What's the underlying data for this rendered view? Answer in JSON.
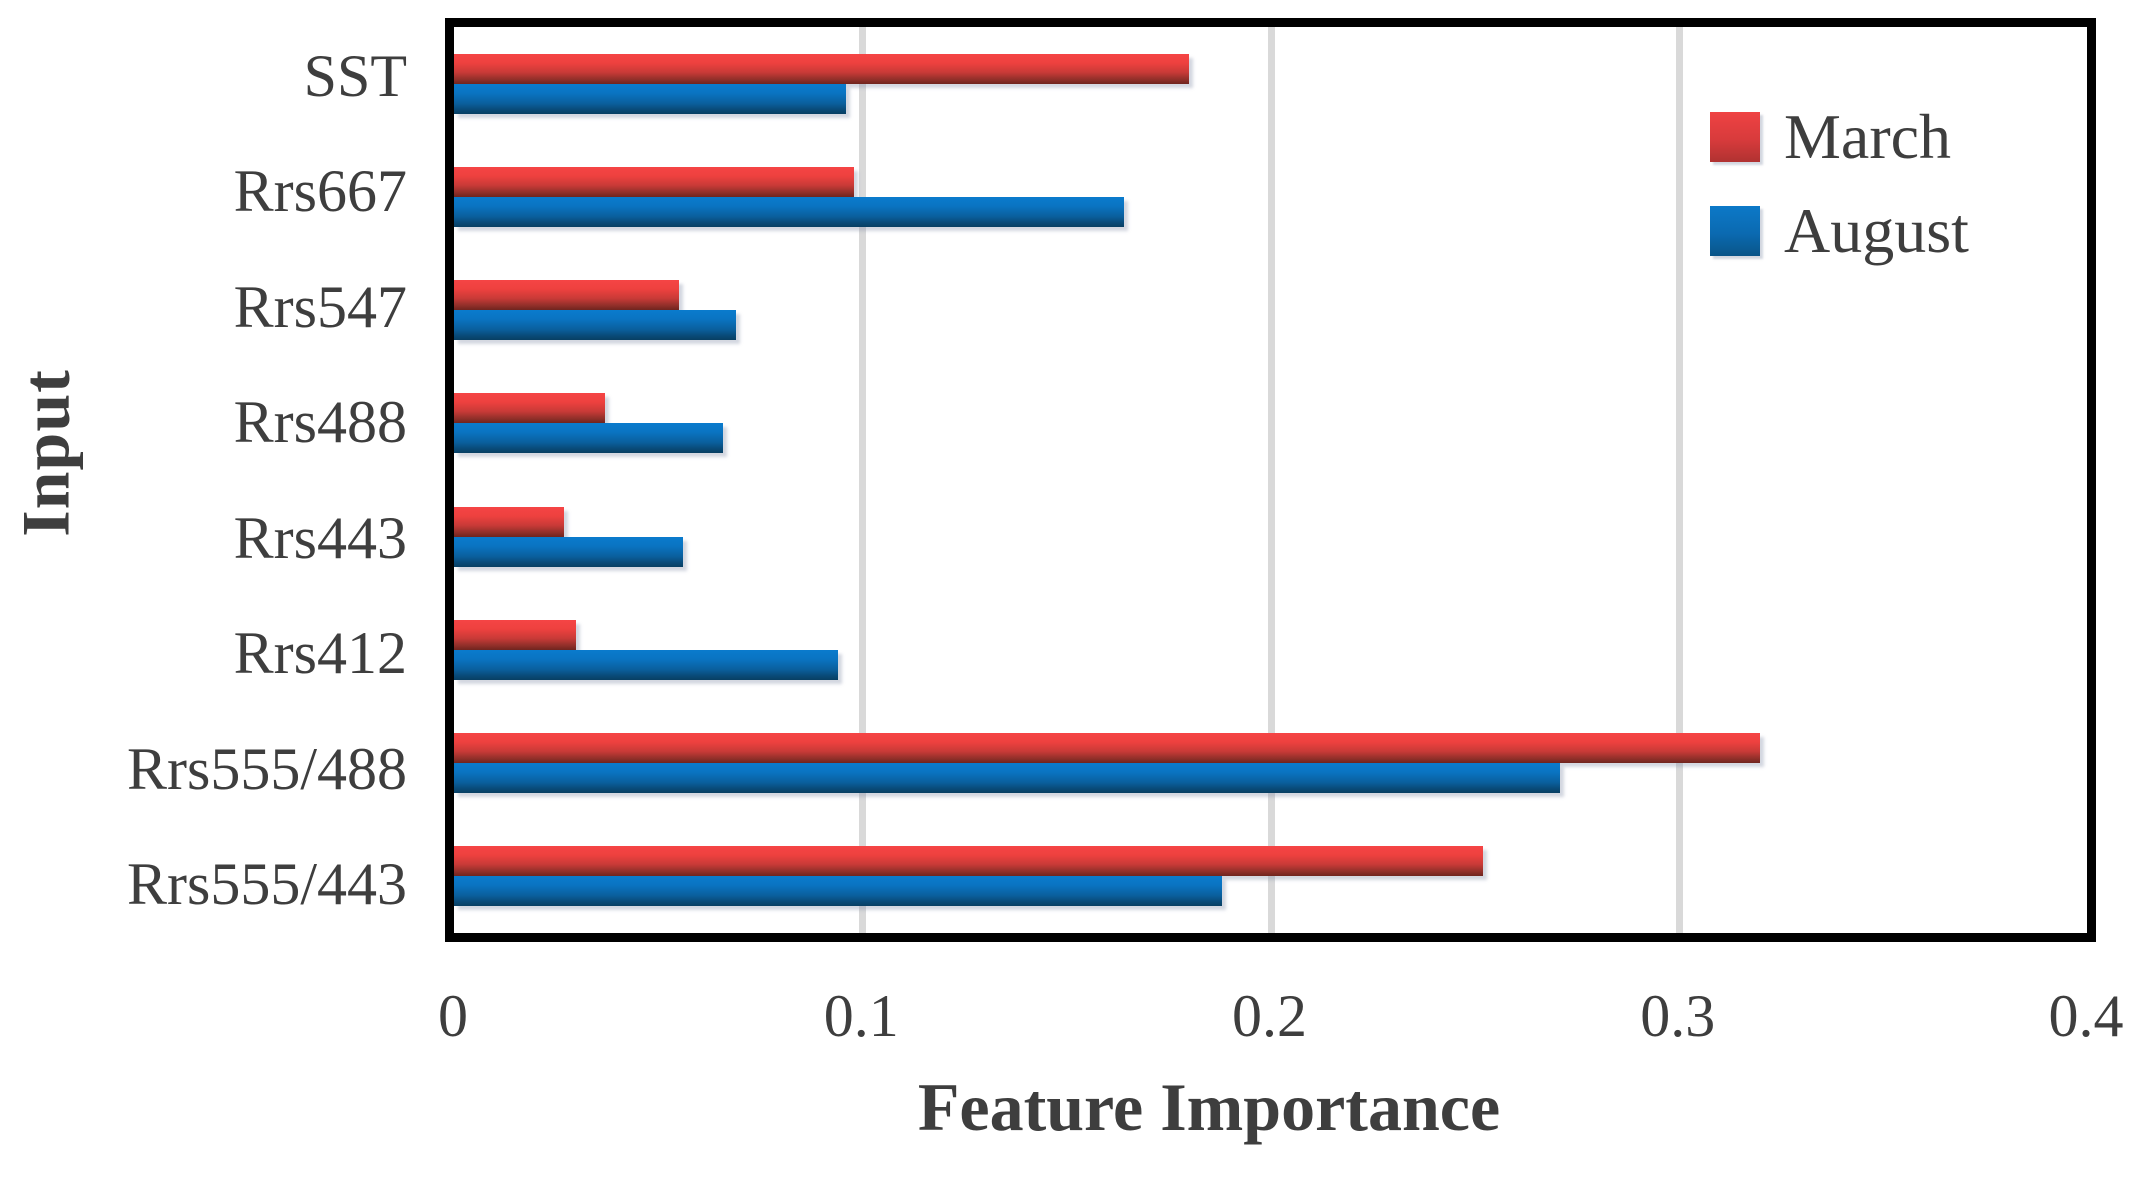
{
  "figure": {
    "y_axis_title": "Input",
    "x_axis_title": "Feature Importance"
  },
  "legend": {
    "items": [
      {
        "key": "march",
        "label": "March",
        "color": "#d93a3c"
      },
      {
        "key": "august",
        "label": "August",
        "color": "#0b6db8"
      }
    ]
  },
  "colors": {
    "march_red": "#d93a3c",
    "august_blue": "#0b6db8",
    "gridline_gray": "#d9d9d9",
    "axis_black": "#000000",
    "text_gray": "#3e3e3e"
  },
  "chart_data": {
    "type": "bar",
    "orientation": "horizontal",
    "title": "",
    "xlabel": "Feature Importance",
    "ylabel": "Input",
    "categories": [
      "SST",
      "Rrs667",
      "Rrs547",
      "Rrs488",
      "Rrs443",
      "Rrs412",
      "Rrs555/488",
      "Rrs555/443"
    ],
    "series": [
      {
        "key": "march",
        "name": "March",
        "color": "#d93a3c",
        "values": [
          0.18,
          0.098,
          0.055,
          0.037,
          0.027,
          0.03,
          0.32,
          0.252
        ]
      },
      {
        "key": "august",
        "name": "August",
        "color": "#0b6db8",
        "values": [
          0.096,
          0.164,
          0.069,
          0.066,
          0.056,
          0.094,
          0.271,
          0.188
        ]
      }
    ],
    "xlim": [
      0,
      0.4
    ],
    "xticks": [
      "0",
      "0.1",
      "0.2",
      "0.3",
      "0.4"
    ],
    "grid": "vertical gridlines at 0.1, 0.2, 0.3",
    "legend_position": "top-right inside plot area"
  }
}
